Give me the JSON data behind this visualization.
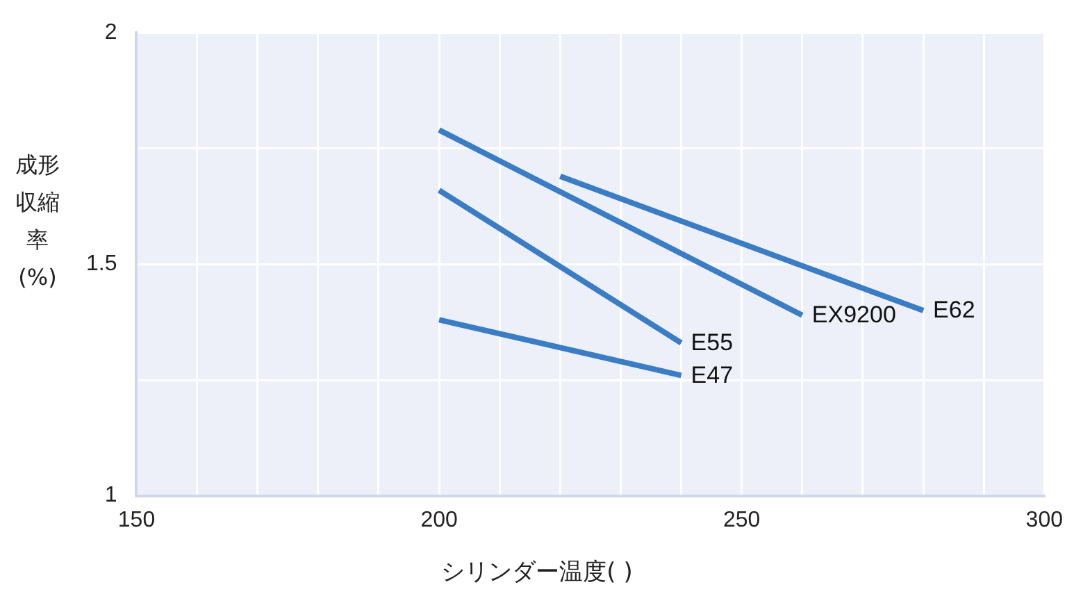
{
  "chart_data": {
    "type": "line",
    "xlabel": "シリンダー温度(    )",
    "ylabel": "成形収縮率(%)",
    "xlim": [
      150,
      300
    ],
    "xticks": [
      150,
      {
        "value": 160,
        "label": null
      },
      {
        "value": 170,
        "label": null
      },
      {
        "value": 180,
        "label": null
      },
      {
        "value": 190,
        "label": null
      },
      200,
      {
        "value": 210,
        "label": null
      },
      {
        "value": 220,
        "label": null
      },
      {
        "value": 230,
        "label": null
      },
      {
        "value": 240,
        "label": null
      },
      250,
      {
        "value": 260,
        "label": null
      },
      {
        "value": 270,
        "label": null
      },
      {
        "value": 280,
        "label": null
      },
      {
        "value": 290,
        "label": null
      },
      300
    ],
    "ylim": [
      1,
      2
    ],
    "yticks": [
      1,
      {
        "value": 1.25,
        "label": null
      },
      1.5,
      {
        "value": 1.75,
        "label": null
      },
      2
    ],
    "grid": true,
    "legend": false,
    "marker": "none",
    "line_style": "solid",
    "series": [
      {
        "name": "EX9200",
        "color": "#3a7dc4",
        "x": [
          200,
          260
        ],
        "values": [
          1.79,
          1.39
        ]
      },
      {
        "name": "E62",
        "color": "#3a7dc4",
        "x": [
          220,
          280
        ],
        "values": [
          1.69,
          1.4
        ]
      },
      {
        "name": "E55",
        "color": "#3a7dc4",
        "x": [
          200,
          240
        ],
        "values": [
          1.66,
          1.33
        ]
      },
      {
        "name": "E47",
        "color": "#3a7dc4",
        "x": [
          200,
          240
        ],
        "values": [
          1.38,
          1.26
        ]
      }
    ]
  }
}
